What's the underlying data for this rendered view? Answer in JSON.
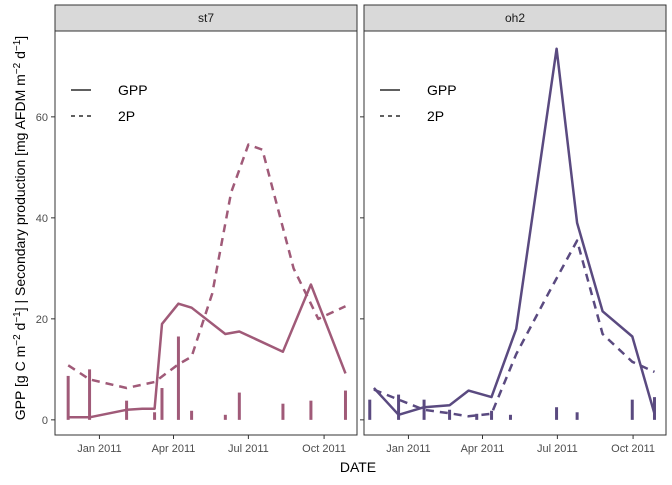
{
  "chart_data": {
    "type": "line",
    "xlabel": "DATE",
    "ylabel_parts": [
      "GPP [g C m",
      "−2",
      " d",
      "−1",
      "] | Secondary production [mg AFDM m",
      "−2",
      " d",
      "−1",
      "]"
    ],
    "ylim": [
      -3,
      77
    ],
    "xlim": [
      "2010-11-08",
      "2011-11-10"
    ],
    "x_ticks": [
      {
        "date": "2011-01-01",
        "label": "Jan 2011"
      },
      {
        "date": "2011-04-01",
        "label": "Apr 2011"
      },
      {
        "date": "2011-07-01",
        "label": "Jul 2011"
      },
      {
        "date": "2011-10-01",
        "label": "Oct 2011"
      }
    ],
    "y_ticks": [
      0,
      20,
      40,
      60
    ],
    "grid": false,
    "legend": {
      "placement": "top-left inside each panel",
      "entries": [
        {
          "label": "GPP",
          "linetype": "solid"
        },
        {
          "label": "2P",
          "linetype": "dashed"
        }
      ]
    },
    "panels": [
      {
        "strip": "st7",
        "color": "#A05A78",
        "series": [
          {
            "name": "GPP",
            "linetype": "solid",
            "points": [
              {
                "x": "2010-11-24",
                "y": 0.5
              },
              {
                "x": "2010-12-20",
                "y": 0.5
              },
              {
                "x": "2011-02-03",
                "y": 2.0
              },
              {
                "x": "2011-02-22",
                "y": 2.2
              },
              {
                "x": "2011-03-09",
                "y": 2.2
              },
              {
                "x": "2011-03-18",
                "y": 19.0
              },
              {
                "x": "2011-04-07",
                "y": 23.0
              },
              {
                "x": "2011-04-23",
                "y": 22.2
              },
              {
                "x": "2011-06-03",
                "y": 17.0
              },
              {
                "x": "2011-06-20",
                "y": 17.5
              },
              {
                "x": "2011-08-12",
                "y": 13.5
              },
              {
                "x": "2011-09-15",
                "y": 26.8
              },
              {
                "x": "2011-10-27",
                "y": 9.2
              }
            ]
          },
          {
            "name": "2P",
            "linetype": "dashed",
            "points": [
              {
                "x": "2010-11-24",
                "y": 10.8
              },
              {
                "x": "2010-12-20",
                "y": 8.0
              },
              {
                "x": "2011-02-03",
                "y": 6.3
              },
              {
                "x": "2011-03-09",
                "y": 7.5
              },
              {
                "x": "2011-04-07",
                "y": 11.0
              },
              {
                "x": "2011-04-23",
                "y": 12.5
              },
              {
                "x": "2011-05-18",
                "y": 25.0
              },
              {
                "x": "2011-06-10",
                "y": 45.0
              },
              {
                "x": "2011-07-01",
                "y": 54.5
              },
              {
                "x": "2011-07-18",
                "y": 53.5
              },
              {
                "x": "2011-08-25",
                "y": 30.0
              },
              {
                "x": "2011-09-24",
                "y": 20.0
              },
              {
                "x": "2011-10-27",
                "y": 22.5
              }
            ]
          },
          {
            "name": "",
            "type": "bar",
            "points": [
              {
                "x": "2010-11-24",
                "y": 8.7
              },
              {
                "x": "2010-12-20",
                "y": 10.0
              },
              {
                "x": "2011-02-03",
                "y": 3.8
              },
              {
                "x": "2011-03-09",
                "y": 1.5
              },
              {
                "x": "2011-03-18",
                "y": 6.3
              },
              {
                "x": "2011-04-07",
                "y": 16.5
              },
              {
                "x": "2011-04-23",
                "y": 1.8
              },
              {
                "x": "2011-06-03",
                "y": 1.0
              },
              {
                "x": "2011-06-20",
                "y": 5.4
              },
              {
                "x": "2011-08-12",
                "y": 3.2
              },
              {
                "x": "2011-09-15",
                "y": 3.8
              },
              {
                "x": "2011-10-27",
                "y": 5.8
              }
            ]
          }
        ]
      },
      {
        "strip": "oh2",
        "color": "#5A4A80",
        "series": [
          {
            "name": "GPP",
            "linetype": "solid",
            "points": [
              {
                "x": "2010-11-20",
                "y": 6.3
              },
              {
                "x": "2010-12-20",
                "y": 1.0
              },
              {
                "x": "2011-01-20",
                "y": 2.5
              },
              {
                "x": "2011-02-20",
                "y": 2.9
              },
              {
                "x": "2011-03-15",
                "y": 5.8
              },
              {
                "x": "2011-04-12",
                "y": 4.5
              },
              {
                "x": "2011-05-12",
                "y": 18.0
              },
              {
                "x": "2011-06-30",
                "y": 73.5
              },
              {
                "x": "2011-07-25",
                "y": 39.0
              },
              {
                "x": "2011-08-25",
                "y": 21.5
              },
              {
                "x": "2011-09-30",
                "y": 16.5
              },
              {
                "x": "2011-10-27",
                "y": 1.2
              }
            ]
          },
          {
            "name": "2P",
            "linetype": "dashed",
            "points": [
              {
                "x": "2010-11-20",
                "y": 6.0
              },
              {
                "x": "2010-12-20",
                "y": 4.0
              },
              {
                "x": "2011-01-20",
                "y": 2.0
              },
              {
                "x": "2011-02-20",
                "y": 1.3
              },
              {
                "x": "2011-03-15",
                "y": 0.7
              },
              {
                "x": "2011-04-12",
                "y": 1.2
              },
              {
                "x": "2011-05-12",
                "y": 13.0
              },
              {
                "x": "2011-06-20",
                "y": 25.0
              },
              {
                "x": "2011-07-25",
                "y": 35.5
              },
              {
                "x": "2011-08-25",
                "y": 17.0
              },
              {
                "x": "2011-09-30",
                "y": 11.5
              },
              {
                "x": "2011-10-27",
                "y": 9.5
              }
            ]
          },
          {
            "name": "",
            "type": "bar",
            "points": [
              {
                "x": "2010-11-15",
                "y": 4.0
              },
              {
                "x": "2010-12-20",
                "y": 5.0
              },
              {
                "x": "2011-01-20",
                "y": 4.0
              },
              {
                "x": "2011-02-20",
                "y": 2.0
              },
              {
                "x": "2011-03-25",
                "y": 1.2
              },
              {
                "x": "2011-04-12",
                "y": 1.8
              },
              {
                "x": "2011-05-05",
                "y": 1.0
              },
              {
                "x": "2011-06-30",
                "y": 2.5
              },
              {
                "x": "2011-07-25",
                "y": 1.5
              },
              {
                "x": "2011-09-30",
                "y": 4.0
              },
              {
                "x": "2011-10-27",
                "y": 4.5
              }
            ]
          }
        ]
      }
    ]
  }
}
